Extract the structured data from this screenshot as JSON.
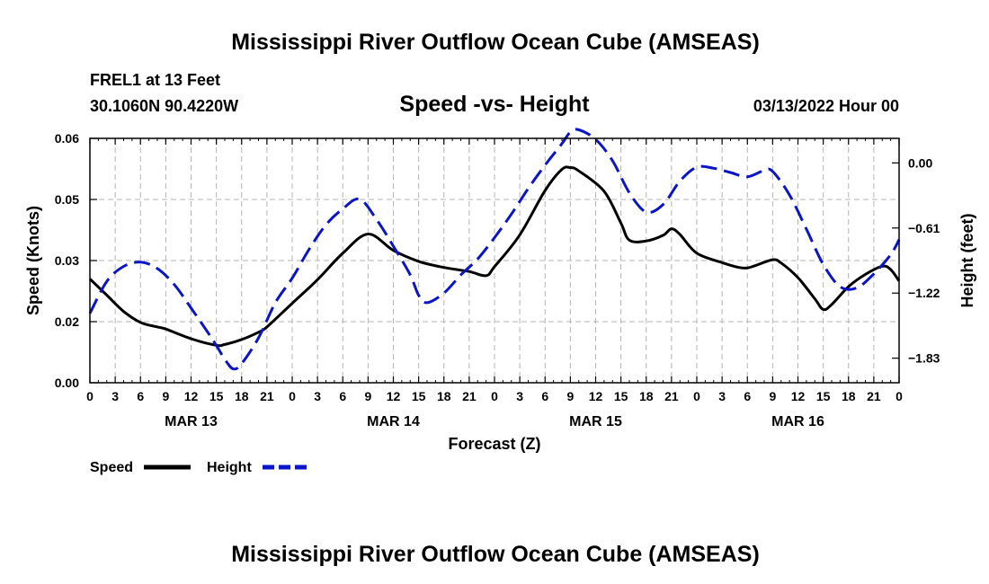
{
  "page": {
    "title": "Mississippi River Outflow Ocean Cube (AMSEAS)",
    "footer_title": "Mississippi River Outflow Ocean Cube (AMSEAS)"
  },
  "chart_data": {
    "type": "line",
    "title": "Speed -vs- Height",
    "station": "FREL1 at 13 Feet",
    "location": "30.1060N  90.4220W",
    "datetime": "03/13/2022 Hour 00",
    "xlabel": "Forecast (Z)",
    "ylabel_left": "Speed (Knots)",
    "ylabel_right": "Height (feet)",
    "x_range": [
      0,
      96
    ],
    "ylim_left": [
      0,
      0.06
    ],
    "ylim_right": [
      -2.06,
      0.23
    ],
    "grid": true,
    "left_ticks": [
      {
        "value": 0.0,
        "label": "0.00"
      },
      {
        "value": 0.015,
        "label": "0.02"
      },
      {
        "value": 0.03,
        "label": "0.03"
      },
      {
        "value": 0.045,
        "label": "0.05"
      },
      {
        "value": 0.06,
        "label": "0.06"
      }
    ],
    "right_ticks": [
      {
        "value": 0.0,
        "label": "0.00"
      },
      {
        "value": -0.61,
        "label": "−0.61"
      },
      {
        "value": -1.22,
        "label": "−1.22"
      },
      {
        "value": -1.83,
        "label": "−1.83"
      }
    ],
    "x_ticks": [
      {
        "hour": 0,
        "label": "0"
      },
      {
        "hour": 3,
        "label": "3"
      },
      {
        "hour": 6,
        "label": "6"
      },
      {
        "hour": 9,
        "label": "9"
      },
      {
        "hour": 12,
        "label": "12"
      },
      {
        "hour": 15,
        "label": "15"
      },
      {
        "hour": 18,
        "label": "18"
      },
      {
        "hour": 21,
        "label": "21"
      },
      {
        "hour": 24,
        "label": "0"
      },
      {
        "hour": 27,
        "label": "3"
      },
      {
        "hour": 30,
        "label": "6"
      },
      {
        "hour": 33,
        "label": "9"
      },
      {
        "hour": 36,
        "label": "12"
      },
      {
        "hour": 39,
        "label": "15"
      },
      {
        "hour": 42,
        "label": "18"
      },
      {
        "hour": 45,
        "label": "21"
      },
      {
        "hour": 48,
        "label": "0"
      },
      {
        "hour": 51,
        "label": "3"
      },
      {
        "hour": 54,
        "label": "6"
      },
      {
        "hour": 57,
        "label": "9"
      },
      {
        "hour": 60,
        "label": "12"
      },
      {
        "hour": 63,
        "label": "15"
      },
      {
        "hour": 66,
        "label": "18"
      },
      {
        "hour": 69,
        "label": "21"
      },
      {
        "hour": 72,
        "label": "0"
      },
      {
        "hour": 75,
        "label": "3"
      },
      {
        "hour": 78,
        "label": "6"
      },
      {
        "hour": 81,
        "label": "9"
      },
      {
        "hour": 84,
        "label": "12"
      },
      {
        "hour": 87,
        "label": "15"
      },
      {
        "hour": 90,
        "label": "18"
      },
      {
        "hour": 93,
        "label": "21"
      },
      {
        "hour": 96,
        "label": "0"
      }
    ],
    "day_labels": [
      {
        "hour": 12,
        "label": "MAR 13"
      },
      {
        "hour": 36,
        "label": "MAR 14"
      },
      {
        "hour": 60,
        "label": "MAR 15"
      },
      {
        "hour": 84,
        "label": "MAR 16"
      }
    ],
    "series": [
      {
        "name": "Speed",
        "axis": "left",
        "color": "#000000",
        "dash": "solid",
        "points": [
          [
            0,
            0.0255
          ],
          [
            2,
            0.0215
          ],
          [
            4,
            0.0175
          ],
          [
            6,
            0.0148
          ],
          [
            8,
            0.0137
          ],
          [
            9,
            0.0132
          ],
          [
            12,
            0.0108
          ],
          [
            15,
            0.0092
          ],
          [
            16,
            0.0094
          ],
          [
            18,
            0.0106
          ],
          [
            20,
            0.0124
          ],
          [
            21,
            0.0137
          ],
          [
            24,
            0.0195
          ],
          [
            27,
            0.0253
          ],
          [
            30,
            0.0318
          ],
          [
            33,
            0.0365
          ],
          [
            36,
            0.0325
          ],
          [
            39,
            0.0298
          ],
          [
            42,
            0.0283
          ],
          [
            45,
            0.0273
          ],
          [
            47,
            0.0263
          ],
          [
            48,
            0.0285
          ],
          [
            51,
            0.0363
          ],
          [
            54,
            0.0472
          ],
          [
            56,
            0.0524
          ],
          [
            57,
            0.0528
          ],
          [
            58,
            0.052
          ],
          [
            61,
            0.047
          ],
          [
            63,
            0.0392
          ],
          [
            64,
            0.035
          ],
          [
            66,
            0.0348
          ],
          [
            68,
            0.0362
          ],
          [
            69,
            0.0378
          ],
          [
            70,
            0.0364
          ],
          [
            72,
            0.0318
          ],
          [
            75,
            0.0295
          ],
          [
            77,
            0.0283
          ],
          [
            78,
            0.0282
          ],
          [
            79,
            0.0288
          ],
          [
            81,
            0.0302
          ],
          [
            82,
            0.0294
          ],
          [
            84,
            0.0258
          ],
          [
            86,
            0.0206
          ],
          [
            87,
            0.018
          ],
          [
            88,
            0.0192
          ],
          [
            90,
            0.0236
          ],
          [
            92,
            0.0266
          ],
          [
            94,
            0.0286
          ],
          [
            95,
            0.0278
          ],
          [
            96,
            0.025
          ]
        ]
      },
      {
        "name": "Height",
        "axis": "right",
        "color": "#0a14c8",
        "dash": "dashed",
        "points": [
          [
            0,
            -1.41
          ],
          [
            2,
            -1.11
          ],
          [
            4,
            -0.97
          ],
          [
            6,
            -0.93
          ],
          [
            8,
            -0.99
          ],
          [
            10,
            -1.14
          ],
          [
            12,
            -1.36
          ],
          [
            14,
            -1.59
          ],
          [
            15,
            -1.71
          ],
          [
            16,
            -1.84
          ],
          [
            17,
            -1.93
          ],
          [
            18,
            -1.88
          ],
          [
            20,
            -1.64
          ],
          [
            22,
            -1.31
          ],
          [
            24,
            -1.08
          ],
          [
            26,
            -0.81
          ],
          [
            28,
            -0.58
          ],
          [
            30,
            -0.43
          ],
          [
            32,
            -0.34
          ],
          [
            34,
            -0.53
          ],
          [
            36,
            -0.78
          ],
          [
            38,
            -1.05
          ],
          [
            39,
            -1.24
          ],
          [
            40,
            -1.31
          ],
          [
            42,
            -1.22
          ],
          [
            44,
            -1.05
          ],
          [
            46,
            -0.9
          ],
          [
            48,
            -0.7
          ],
          [
            50,
            -0.48
          ],
          [
            52,
            -0.24
          ],
          [
            54,
            -0.02
          ],
          [
            56,
            0.18
          ],
          [
            57,
            0.29
          ],
          [
            58,
            0.31
          ],
          [
            60,
            0.22
          ],
          [
            62,
            0.02
          ],
          [
            64,
            -0.28
          ],
          [
            66,
            -0.46
          ],
          [
            68,
            -0.39
          ],
          [
            70,
            -0.17
          ],
          [
            72,
            -0.04
          ],
          [
            74,
            -0.05
          ],
          [
            76,
            -0.09
          ],
          [
            78,
            -0.13
          ],
          [
            80,
            -0.07
          ],
          [
            81,
            -0.08
          ],
          [
            83,
            -0.3
          ],
          [
            85,
            -0.62
          ],
          [
            87,
            -0.95
          ],
          [
            89,
            -1.16
          ],
          [
            91,
            -1.17
          ],
          [
            93,
            -1.04
          ],
          [
            95,
            -0.86
          ],
          [
            96,
            -0.72
          ]
        ]
      }
    ]
  }
}
